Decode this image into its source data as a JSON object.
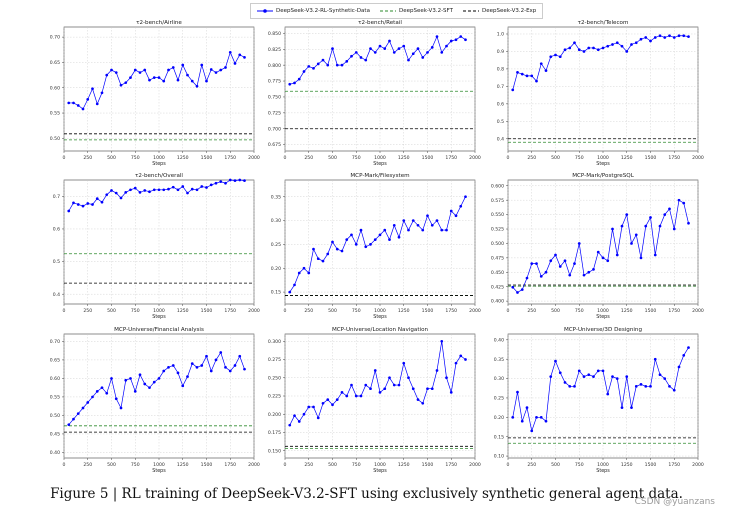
{
  "legend": {
    "items": [
      {
        "label": "DeepSeek-V3.2-RL-Synthetic-Data",
        "color": "#0000ff",
        "style": "line-marker"
      },
      {
        "label": "DeepSeek-V3.2-SFT",
        "color": "#2e8b2e",
        "style": "dashed"
      },
      {
        "label": "DeepSeek-V3.2-Exp",
        "color": "#000000",
        "style": "dashed"
      }
    ]
  },
  "caption": "Figure 5 | RL training of DeepSeek-V3.2-SFT using exclusively synthetic general agent data.",
  "watermark": "CSDN @yuanzans",
  "chart_data": [
    {
      "type": "line",
      "title": "τ2-bench/Airline",
      "xlabel": "Steps",
      "ylabel": "",
      "xlim": [
        0,
        2000
      ],
      "ylim": [
        0.475,
        0.72
      ],
      "xticks": [
        "0",
        "250",
        "500",
        "750",
        "1000",
        "1250",
        "1500",
        "1750",
        "2000"
      ],
      "yticks": [
        "0.50",
        "0.55",
        "0.60",
        "0.65",
        "0.70"
      ],
      "ytick_values": [
        0.5,
        0.55,
        0.6,
        0.65,
        0.7
      ],
      "grid": true,
      "x": [
        50,
        100,
        150,
        200,
        250,
        300,
        350,
        400,
        450,
        500,
        550,
        600,
        650,
        700,
        750,
        800,
        850,
        900,
        950,
        1000,
        1050,
        1100,
        1150,
        1200,
        1250,
        1300,
        1350,
        1400,
        1450,
        1500,
        1550,
        1600,
        1650,
        1700,
        1750,
        1800,
        1850,
        1900
      ],
      "series": [
        {
          "name": "DeepSeek-V3.2-RL-Synthetic-Data",
          "values": [
            0.57,
            0.57,
            0.565,
            0.558,
            0.577,
            0.598,
            0.568,
            0.59,
            0.625,
            0.635,
            0.63,
            0.605,
            0.61,
            0.62,
            0.635,
            0.63,
            0.635,
            0.615,
            0.62,
            0.62,
            0.613,
            0.635,
            0.64,
            0.615,
            0.645,
            0.625,
            0.613,
            0.603,
            0.645,
            0.613,
            0.636,
            0.63,
            0.635,
            0.64,
            0.67,
            0.648,
            0.665,
            0.66
          ]
        }
      ],
      "ref_sft": 0.497,
      "ref_exp": 0.509
    },
    {
      "type": "line",
      "title": "τ2-bench/Retail",
      "xlabel": "Steps",
      "ylabel": "",
      "xlim": [
        0,
        2000
      ],
      "ylim": [
        0.665,
        0.86
      ],
      "xticks": [
        "0",
        "250",
        "500",
        "750",
        "1000",
        "1250",
        "1500",
        "1750",
        "2000"
      ],
      "yticks": [
        "0.675",
        "0.700",
        "0.725",
        "0.750",
        "0.775",
        "0.800",
        "0.825",
        "0.850"
      ],
      "ytick_values": [
        0.675,
        0.7,
        0.725,
        0.75,
        0.775,
        0.8,
        0.825,
        0.85
      ],
      "grid": true,
      "x": [
        50,
        100,
        150,
        200,
        250,
        300,
        350,
        400,
        450,
        500,
        550,
        600,
        650,
        700,
        750,
        800,
        850,
        900,
        950,
        1000,
        1050,
        1100,
        1150,
        1200,
        1250,
        1300,
        1350,
        1400,
        1450,
        1500,
        1550,
        1600,
        1650,
        1700,
        1750,
        1800,
        1850,
        1900
      ],
      "series": [
        {
          "name": "DeepSeek-V3.2-RL-Synthetic-Data",
          "values": [
            0.77,
            0.772,
            0.778,
            0.79,
            0.798,
            0.795,
            0.802,
            0.808,
            0.8,
            0.826,
            0.8,
            0.8,
            0.806,
            0.814,
            0.82,
            0.812,
            0.808,
            0.826,
            0.82,
            0.83,
            0.826,
            0.838,
            0.82,
            0.826,
            0.83,
            0.808,
            0.818,
            0.826,
            0.812,
            0.82,
            0.828,
            0.845,
            0.82,
            0.83,
            0.838,
            0.84,
            0.845,
            0.84
          ]
        }
      ],
      "ref_sft": 0.759,
      "ref_exp": 0.7
    },
    {
      "type": "line",
      "title": "τ2-bench/Telecom",
      "xlabel": "Steps",
      "ylabel": "",
      "xlim": [
        0,
        2000
      ],
      "ylim": [
        0.33,
        1.04
      ],
      "xticks": [
        "0",
        "250",
        "500",
        "750",
        "1000",
        "1250",
        "1500",
        "1750",
        "2000"
      ],
      "yticks": [
        "0.4",
        "0.5",
        "0.6",
        "0.7",
        "0.8",
        "0.9",
        "1.0"
      ],
      "ytick_values": [
        0.4,
        0.5,
        0.6,
        0.7,
        0.8,
        0.9,
        1.0
      ],
      "grid": true,
      "x": [
        50,
        100,
        150,
        200,
        250,
        300,
        350,
        400,
        450,
        500,
        550,
        600,
        650,
        700,
        750,
        800,
        850,
        900,
        950,
        1000,
        1050,
        1100,
        1150,
        1200,
        1250,
        1300,
        1350,
        1400,
        1450,
        1500,
        1550,
        1600,
        1650,
        1700,
        1750,
        1800,
        1850,
        1900
      ],
      "series": [
        {
          "name": "DeepSeek-V3.2-RL-Synthetic-Data",
          "values": [
            0.68,
            0.78,
            0.77,
            0.76,
            0.76,
            0.73,
            0.83,
            0.79,
            0.87,
            0.88,
            0.87,
            0.91,
            0.92,
            0.95,
            0.91,
            0.9,
            0.92,
            0.92,
            0.91,
            0.92,
            0.93,
            0.94,
            0.95,
            0.93,
            0.9,
            0.94,
            0.95,
            0.97,
            0.98,
            0.96,
            0.98,
            0.99,
            0.98,
            0.99,
            0.98,
            0.99,
            0.99,
            0.985
          ]
        }
      ],
      "ref_sft": 0.38,
      "ref_exp": 0.4
    },
    {
      "type": "line",
      "title": "τ2-bench/Overall",
      "xlabel": "Steps",
      "ylabel": "",
      "xlim": [
        0,
        2000
      ],
      "ylim": [
        0.37,
        0.75
      ],
      "xticks": [
        "0",
        "250",
        "500",
        "750",
        "1000",
        "1250",
        "1500",
        "1750",
        "2000"
      ],
      "yticks": [
        "0.4",
        "0.5",
        "0.6",
        "0.7"
      ],
      "ytick_values": [
        0.4,
        0.5,
        0.6,
        0.7
      ],
      "grid": true,
      "x": [
        50,
        100,
        150,
        200,
        250,
        300,
        350,
        400,
        450,
        500,
        550,
        600,
        650,
        700,
        750,
        800,
        850,
        900,
        950,
        1000,
        1050,
        1100,
        1150,
        1200,
        1250,
        1300,
        1350,
        1400,
        1450,
        1500,
        1550,
        1600,
        1650,
        1700,
        1750,
        1800,
        1850,
        1900
      ],
      "series": [
        {
          "name": "DeepSeek-V3.2-RL-Synthetic-Data",
          "values": [
            0.655,
            0.68,
            0.675,
            0.67,
            0.678,
            0.675,
            0.693,
            0.682,
            0.705,
            0.718,
            0.71,
            0.695,
            0.712,
            0.72,
            0.725,
            0.712,
            0.718,
            0.714,
            0.72,
            0.72,
            0.72,
            0.722,
            0.728,
            0.72,
            0.73,
            0.71,
            0.722,
            0.72,
            0.73,
            0.727,
            0.735,
            0.74,
            0.745,
            0.74,
            0.75,
            0.748,
            0.75,
            0.748
          ]
        }
      ],
      "ref_sft": 0.524,
      "ref_exp": 0.434
    },
    {
      "type": "line",
      "title": "MCP-Mark/Filesystem",
      "xlabel": "Steps",
      "ylabel": "",
      "xlim": [
        0,
        2000
      ],
      "ylim": [
        0.125,
        0.385
      ],
      "xticks": [
        "0",
        "250",
        "500",
        "750",
        "1000",
        "1250",
        "1500",
        "1750",
        "2000"
      ],
      "yticks": [
        "0.15",
        "0.20",
        "0.25",
        "0.30",
        "0.35"
      ],
      "ytick_values": [
        0.15,
        0.2,
        0.25,
        0.3,
        0.35
      ],
      "grid": true,
      "x": [
        50,
        100,
        150,
        200,
        250,
        300,
        350,
        400,
        450,
        500,
        550,
        600,
        650,
        700,
        750,
        800,
        850,
        900,
        950,
        1000,
        1050,
        1100,
        1150,
        1200,
        1250,
        1300,
        1350,
        1400,
        1450,
        1500,
        1550,
        1600,
        1650,
        1700,
        1750,
        1800,
        1850,
        1900
      ],
      "series": [
        {
          "name": "DeepSeek-V3.2-RL-Synthetic-Data",
          "values": [
            0.15,
            0.165,
            0.19,
            0.2,
            0.19,
            0.24,
            0.22,
            0.215,
            0.23,
            0.255,
            0.24,
            0.236,
            0.26,
            0.27,
            0.25,
            0.28,
            0.245,
            0.25,
            0.26,
            0.27,
            0.28,
            0.26,
            0.29,
            0.265,
            0.3,
            0.28,
            0.3,
            0.29,
            0.28,
            0.31,
            0.29,
            0.3,
            0.28,
            0.28,
            0.32,
            0.31,
            0.33,
            0.35
          ]
        }
      ],
      "ref_sft": 0.143,
      "ref_exp": 0.143
    },
    {
      "type": "line",
      "title": "MCP-Mark/PostgreSQL",
      "xlabel": "Steps",
      "ylabel": "",
      "xlim": [
        0,
        2000
      ],
      "ylim": [
        0.395,
        0.61
      ],
      "xticks": [
        "0",
        "250",
        "500",
        "750",
        "1000",
        "1250",
        "1500",
        "1750",
        "2000"
      ],
      "yticks": [
        "0.400",
        "0.425",
        "0.450",
        "0.475",
        "0.500",
        "0.525",
        "0.550",
        "0.575",
        "0.600"
      ],
      "ytick_values": [
        0.4,
        0.425,
        0.45,
        0.475,
        0.5,
        0.525,
        0.55,
        0.575,
        0.6
      ],
      "grid": true,
      "x": [
        50,
        100,
        150,
        200,
        250,
        300,
        350,
        400,
        450,
        500,
        550,
        600,
        650,
        700,
        750,
        800,
        850,
        900,
        950,
        1000,
        1050,
        1100,
        1150,
        1200,
        1250,
        1300,
        1350,
        1400,
        1450,
        1500,
        1550,
        1600,
        1650,
        1700,
        1750,
        1800,
        1850,
        1900
      ],
      "series": [
        {
          "name": "DeepSeek-V3.2-RL-Synthetic-Data",
          "values": [
            0.424,
            0.415,
            0.42,
            0.44,
            0.465,
            0.465,
            0.443,
            0.45,
            0.47,
            0.48,
            0.46,
            0.47,
            0.445,
            0.465,
            0.5,
            0.445,
            0.45,
            0.455,
            0.485,
            0.475,
            0.47,
            0.525,
            0.48,
            0.53,
            0.55,
            0.5,
            0.515,
            0.475,
            0.53,
            0.545,
            0.48,
            0.53,
            0.55,
            0.56,
            0.525,
            0.575,
            0.57,
            0.535
          ]
        }
      ],
      "ref_sft": 0.426,
      "ref_exp": 0.428
    },
    {
      "type": "line",
      "title": "MCP-Universe/Financial Analysis",
      "xlabel": "Steps",
      "ylabel": "",
      "xlim": [
        0,
        2000
      ],
      "ylim": [
        0.385,
        0.72
      ],
      "xticks": [
        "0",
        "250",
        "500",
        "750",
        "1000",
        "1250",
        "1500",
        "1750",
        "2000"
      ],
      "yticks": [
        "0.40",
        "0.45",
        "0.50",
        "0.55",
        "0.60",
        "0.65",
        "0.70"
      ],
      "ytick_values": [
        0.4,
        0.45,
        0.5,
        0.55,
        0.6,
        0.65,
        0.7
      ],
      "grid": true,
      "x": [
        50,
        100,
        150,
        200,
        250,
        300,
        350,
        400,
        450,
        500,
        550,
        600,
        650,
        700,
        750,
        800,
        850,
        900,
        950,
        1000,
        1050,
        1100,
        1150,
        1200,
        1250,
        1300,
        1350,
        1400,
        1450,
        1500,
        1550,
        1600,
        1650,
        1700,
        1750,
        1800,
        1850,
        1900
      ],
      "series": [
        {
          "name": "DeepSeek-V3.2-RL-Synthetic-Data",
          "values": [
            0.475,
            0.49,
            0.505,
            0.52,
            0.535,
            0.55,
            0.565,
            0.575,
            0.56,
            0.6,
            0.545,
            0.52,
            0.595,
            0.6,
            0.565,
            0.61,
            0.585,
            0.575,
            0.59,
            0.6,
            0.62,
            0.63,
            0.635,
            0.615,
            0.58,
            0.605,
            0.64,
            0.63,
            0.635,
            0.66,
            0.62,
            0.65,
            0.67,
            0.63,
            0.62,
            0.635,
            0.66,
            0.625
          ]
        }
      ],
      "ref_sft": 0.472,
      "ref_exp": 0.455
    },
    {
      "type": "line",
      "title": "MCP-Universe/Location Navigation",
      "xlabel": "Steps",
      "ylabel": "",
      "xlim": [
        0,
        2000
      ],
      "ylim": [
        0.14,
        0.31
      ],
      "xticks": [
        "0",
        "250",
        "500",
        "750",
        "1000",
        "1250",
        "1500",
        "1750",
        "2000"
      ],
      "yticks": [
        "0.150",
        "0.175",
        "0.200",
        "0.225",
        "0.250",
        "0.275",
        "0.300"
      ],
      "ytick_values": [
        0.15,
        0.175,
        0.2,
        0.225,
        0.25,
        0.275,
        0.3
      ],
      "grid": true,
      "x": [
        50,
        100,
        150,
        200,
        250,
        300,
        350,
        400,
        450,
        500,
        550,
        600,
        650,
        700,
        750,
        800,
        850,
        900,
        950,
        1000,
        1050,
        1100,
        1150,
        1200,
        1250,
        1300,
        1350,
        1400,
        1450,
        1500,
        1550,
        1600,
        1650,
        1700,
        1750,
        1800,
        1850,
        1900
      ],
      "series": [
        {
          "name": "DeepSeek-V3.2-RL-Synthetic-Data",
          "values": [
            0.185,
            0.198,
            0.19,
            0.2,
            0.21,
            0.21,
            0.195,
            0.215,
            0.22,
            0.213,
            0.22,
            0.23,
            0.225,
            0.24,
            0.225,
            0.225,
            0.24,
            0.235,
            0.26,
            0.23,
            0.235,
            0.25,
            0.24,
            0.24,
            0.27,
            0.25,
            0.235,
            0.22,
            0.215,
            0.235,
            0.235,
            0.26,
            0.3,
            0.25,
            0.23,
            0.27,
            0.28,
            0.275
          ]
        }
      ],
      "ref_sft": 0.153,
      "ref_exp": 0.156
    },
    {
      "type": "line",
      "title": "MCP-Universe/3D Designing",
      "xlabel": "Steps",
      "ylabel": "",
      "xlim": [
        0,
        2000
      ],
      "ylim": [
        0.095,
        0.415
      ],
      "xticks": [
        "0",
        "250",
        "500",
        "750",
        "1000",
        "1250",
        "1500",
        "1750",
        "2000"
      ],
      "yticks": [
        "0.10",
        "0.15",
        "0.20",
        "0.25",
        "0.30",
        "0.35",
        "0.40"
      ],
      "ytick_values": [
        0.1,
        0.15,
        0.2,
        0.25,
        0.3,
        0.35,
        0.4
      ],
      "grid": true,
      "x": [
        50,
        100,
        150,
        200,
        250,
        300,
        350,
        400,
        450,
        500,
        550,
        600,
        650,
        700,
        750,
        800,
        850,
        900,
        950,
        1000,
        1050,
        1100,
        1150,
        1200,
        1250,
        1300,
        1350,
        1400,
        1450,
        1500,
        1550,
        1600,
        1650,
        1700,
        1750,
        1800,
        1850,
        1900
      ],
      "series": [
        {
          "name": "DeepSeek-V3.2-RL-Synthetic-Data",
          "values": [
            0.2,
            0.265,
            0.19,
            0.225,
            0.165,
            0.2,
            0.2,
            0.19,
            0.305,
            0.345,
            0.315,
            0.29,
            0.28,
            0.28,
            0.32,
            0.305,
            0.31,
            0.305,
            0.32,
            0.32,
            0.26,
            0.305,
            0.3,
            0.225,
            0.305,
            0.225,
            0.28,
            0.285,
            0.28,
            0.28,
            0.35,
            0.31,
            0.3,
            0.28,
            0.27,
            0.33,
            0.36,
            0.38
          ]
        }
      ],
      "ref_sft": 0.133,
      "ref_exp": 0.147
    }
  ]
}
